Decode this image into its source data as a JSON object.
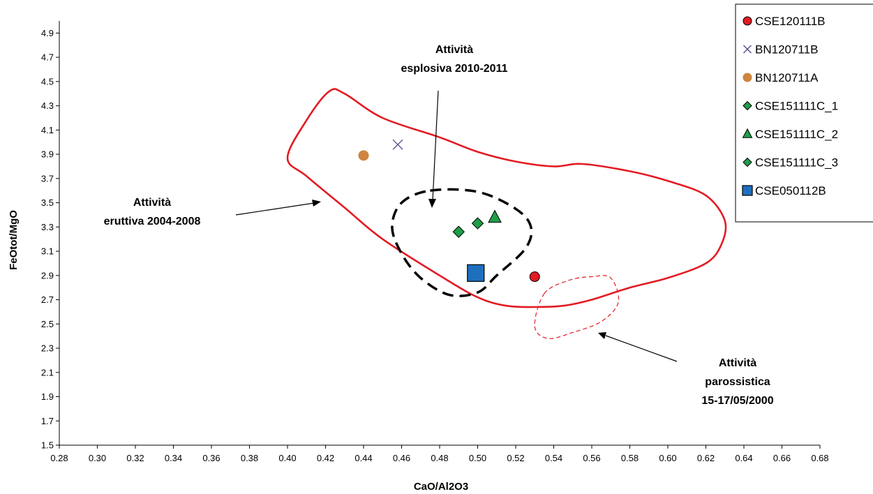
{
  "chart_data": {
    "type": "scatter",
    "xlabel": "CaO/Al2O3",
    "ylabel": "FeOtot/MgO",
    "xlim": [
      0.28,
      0.68
    ],
    "ylim": [
      1.5,
      5.0
    ],
    "x_ticks": [
      "0.28",
      "0.30",
      "0.32",
      "0.34",
      "0.36",
      "0.38",
      "0.40",
      "0.42",
      "0.44",
      "0.46",
      "0.48",
      "0.50",
      "0.52",
      "0.54",
      "0.56",
      "0.58",
      "0.60",
      "0.62",
      "0.64",
      "0.66",
      "0.68"
    ],
    "y_ticks": [
      "1.5",
      "1.7",
      "1.9",
      "2.1",
      "2.3",
      "2.5",
      "2.7",
      "2.9",
      "3.1",
      "3.3",
      "3.5",
      "3.7",
      "3.9",
      "4.1",
      "4.3",
      "4.5",
      "4.7",
      "4.9"
    ],
    "grid": false,
    "legend_position": "top-right",
    "series": [
      {
        "name": "CSE120111B",
        "marker": "circle",
        "color": "#e31b23",
        "points": [
          [
            0.53,
            2.89
          ]
        ]
      },
      {
        "name": "BN120711B",
        "marker": "x",
        "color": "#5b4a8b",
        "points": [
          [
            0.458,
            3.98
          ]
        ]
      },
      {
        "name": "BN120711A",
        "marker": "circle",
        "color": "#cd853f",
        "points": [
          [
            0.44,
            3.89
          ]
        ]
      },
      {
        "name": "CSE151111C_1",
        "marker": "diamond",
        "color": "#1e9e48",
        "points": [
          [
            0.49,
            3.26
          ]
        ]
      },
      {
        "name": "CSE151111C_2",
        "marker": "triangle",
        "color": "#1e9e48",
        "points": [
          [
            0.509,
            3.38
          ]
        ]
      },
      {
        "name": "CSE151111C_3",
        "marker": "diamond",
        "color": "#1e9e48",
        "points": [
          [
            0.5,
            3.33
          ]
        ]
      },
      {
        "name": "CSE050112B",
        "marker": "square",
        "color": "#1f6fbf",
        "points": [
          [
            0.499,
            2.92
          ]
        ]
      }
    ],
    "fields": [
      {
        "label_lines": [
          "Attività",
          "eruttiva 2004-2008"
        ],
        "style": "solid-red",
        "points": [
          [
            0.4,
            3.87
          ],
          [
            0.41,
            4.18
          ],
          [
            0.422,
            4.42
          ],
          [
            0.43,
            4.4
          ],
          [
            0.45,
            4.2
          ],
          [
            0.48,
            4.04
          ],
          [
            0.5,
            3.92
          ],
          [
            0.52,
            3.84
          ],
          [
            0.54,
            3.8
          ],
          [
            0.555,
            3.82
          ],
          [
            0.58,
            3.76
          ],
          [
            0.6,
            3.68
          ],
          [
            0.62,
            3.56
          ],
          [
            0.63,
            3.35
          ],
          [
            0.628,
            3.15
          ],
          [
            0.62,
            3.0
          ],
          [
            0.6,
            2.88
          ],
          [
            0.58,
            2.8
          ],
          [
            0.56,
            2.7
          ],
          [
            0.545,
            2.65
          ],
          [
            0.53,
            2.64
          ],
          [
            0.515,
            2.65
          ],
          [
            0.5,
            2.72
          ],
          [
            0.48,
            2.9
          ],
          [
            0.45,
            3.2
          ],
          [
            0.43,
            3.46
          ],
          [
            0.41,
            3.72
          ]
        ]
      },
      {
        "label_lines": [
          "Attività",
          "esplosiva  2010-2011"
        ],
        "style": "dashed-black",
        "points": [
          [
            0.475,
            3.6
          ],
          [
            0.5,
            3.59
          ],
          [
            0.52,
            3.45
          ],
          [
            0.528,
            3.3
          ],
          [
            0.525,
            3.12
          ],
          [
            0.51,
            2.9
          ],
          [
            0.5,
            2.76
          ],
          [
            0.485,
            2.74
          ],
          [
            0.47,
            2.88
          ],
          [
            0.46,
            3.08
          ],
          [
            0.455,
            3.3
          ],
          [
            0.46,
            3.5
          ]
        ]
      },
      {
        "label_lines": [
          "Attività",
          "parossistica",
          "15-17/05/2000"
        ],
        "style": "dashed-red-thin",
        "points": [
          [
            0.535,
            2.75
          ],
          [
            0.548,
            2.86
          ],
          [
            0.56,
            2.89
          ],
          [
            0.57,
            2.88
          ],
          [
            0.574,
            2.68
          ],
          [
            0.565,
            2.52
          ],
          [
            0.55,
            2.43
          ],
          [
            0.537,
            2.38
          ],
          [
            0.53,
            2.48
          ]
        ]
      }
    ]
  }
}
